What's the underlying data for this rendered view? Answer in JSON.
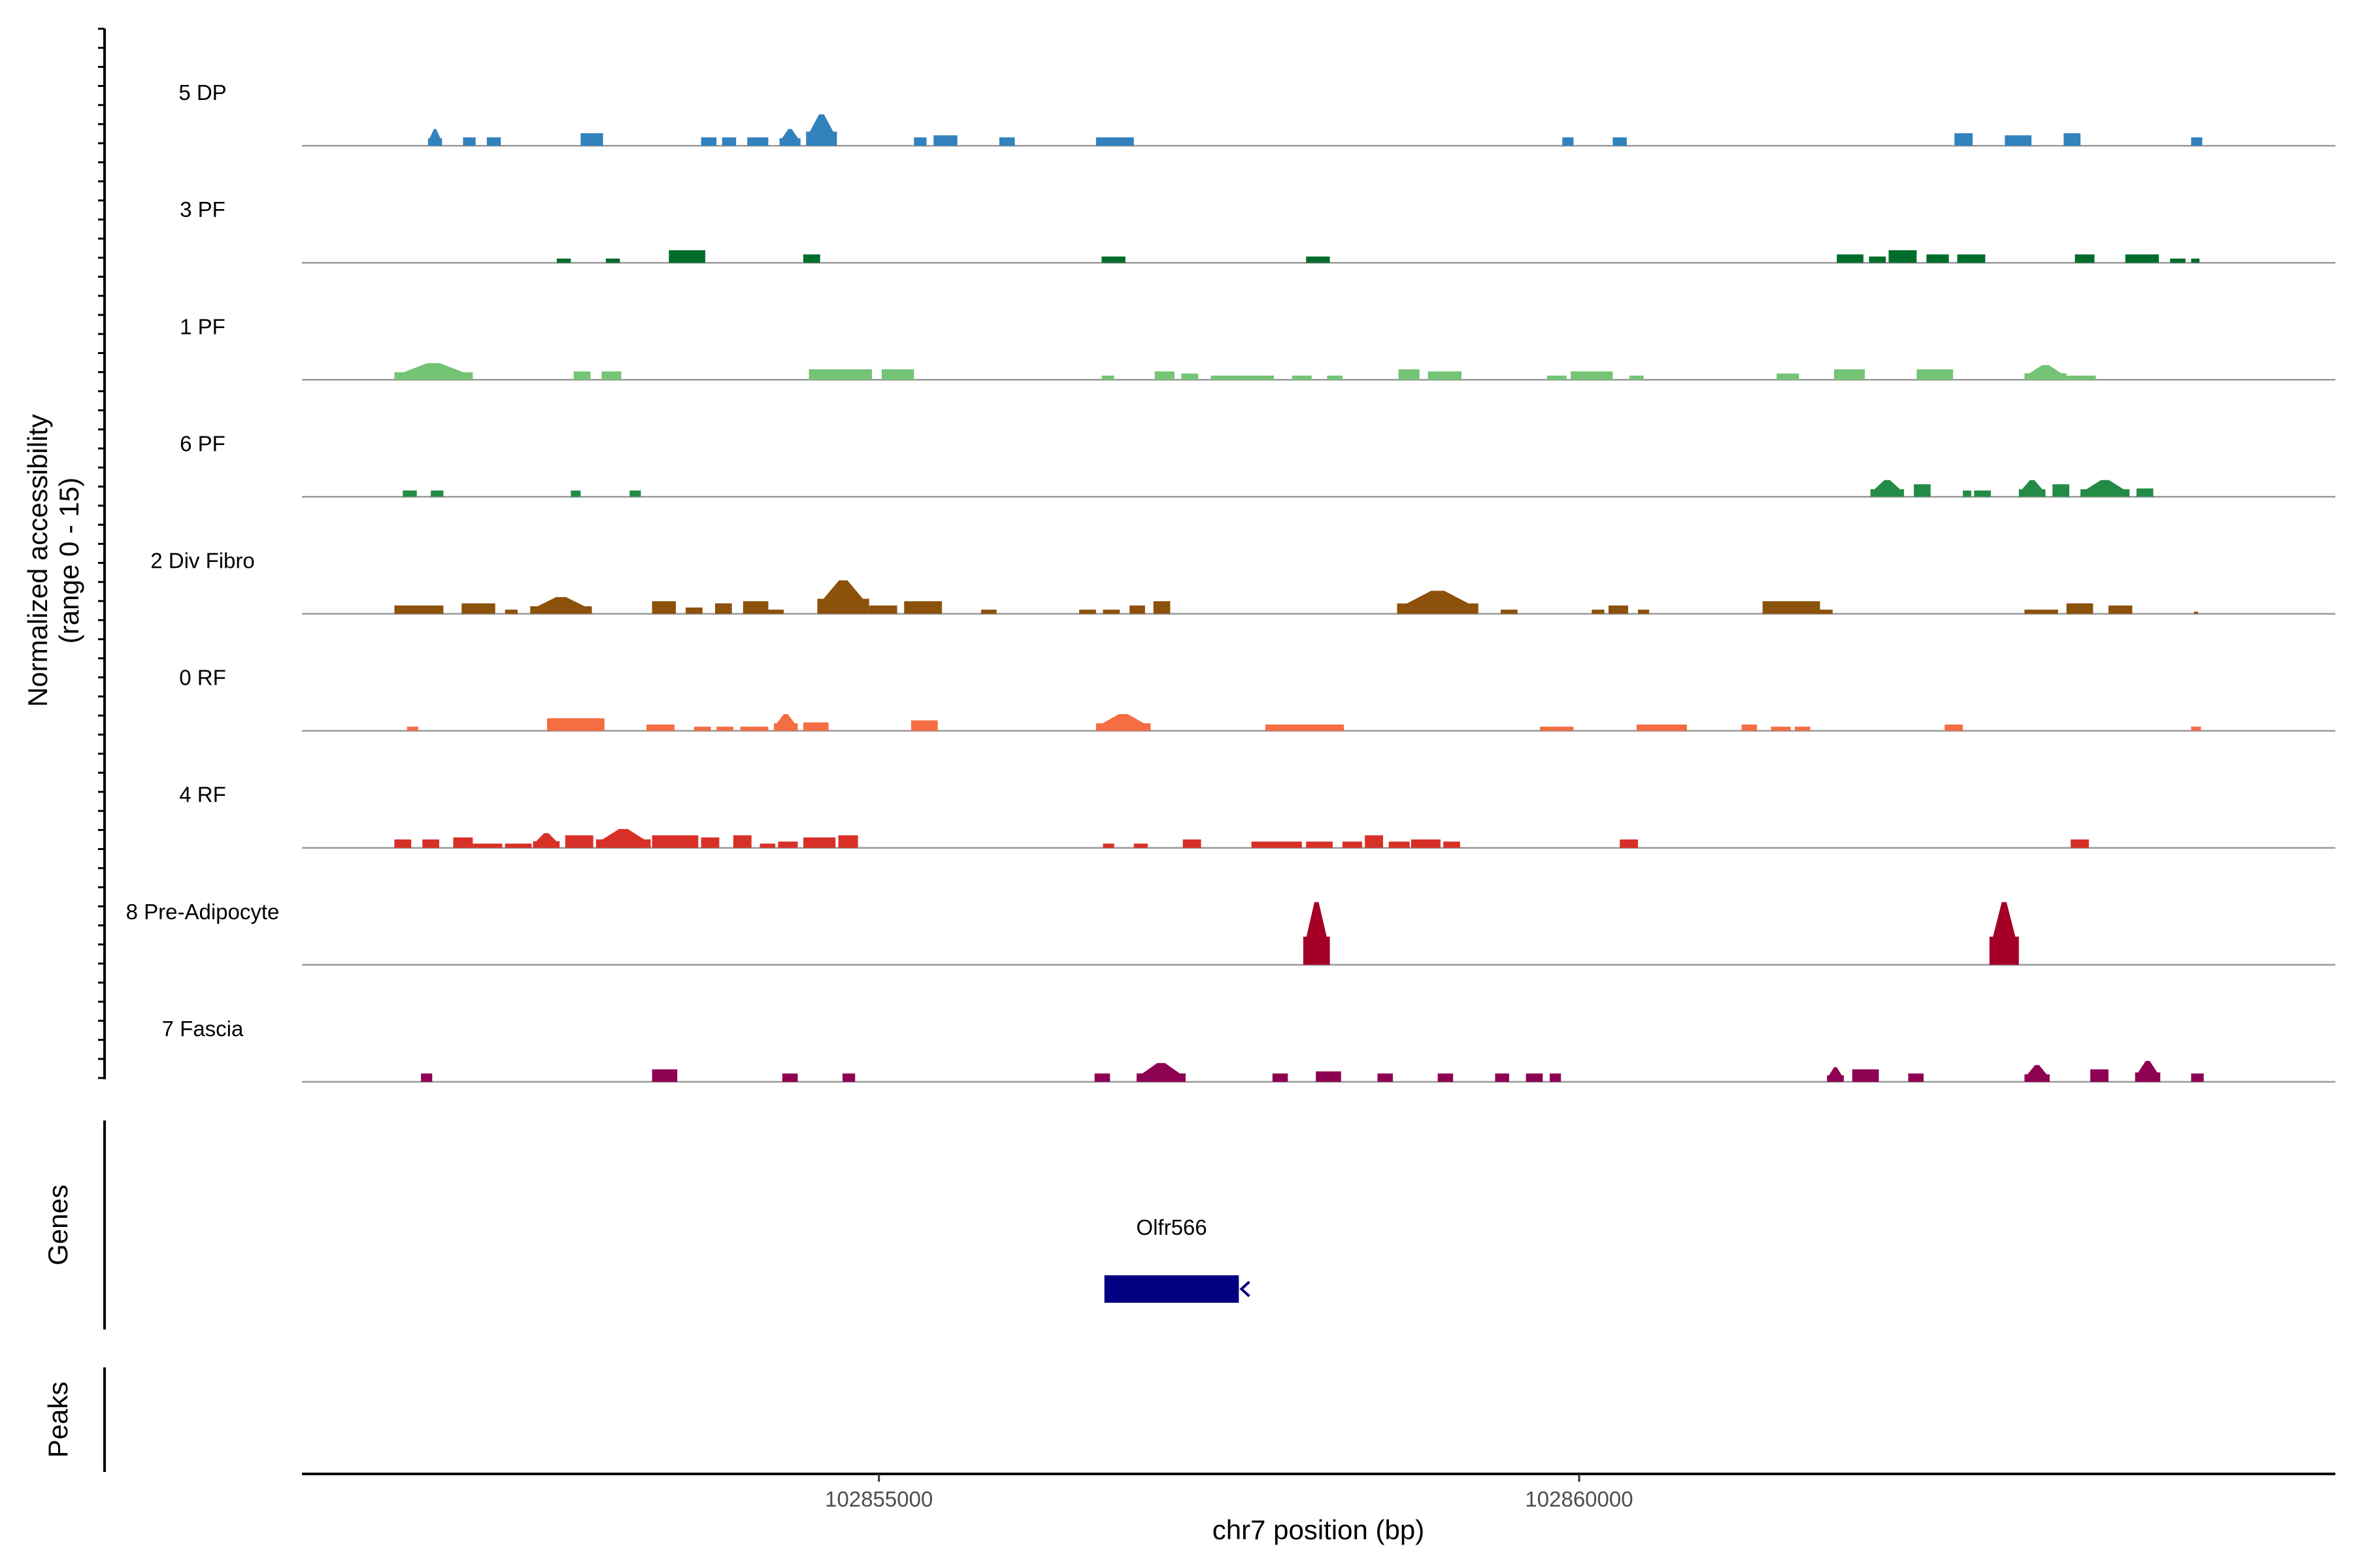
{
  "chart_data": {
    "type": "area",
    "title": "",
    "ylabel": "Normalized accessibility",
    "ylabel_range": "(range 0 - 15)",
    "xlabel": "chr7 position (bp)",
    "xlim": [
      102850880,
      102865400
    ],
    "ylim": [
      0,
      15
    ],
    "x_ticks": [
      102855000,
      102860000
    ],
    "x_tick_labels": [
      "102855000",
      "102860000"
    ],
    "tracks": [
      {
        "name": "5 DP",
        "color": "#3182BD",
        "peaks": [
          [
            102851780,
            102851880,
            4
          ],
          [
            102852030,
            102852120,
            2
          ],
          [
            102852200,
            102852300,
            2
          ],
          [
            102852870,
            102853030,
            3
          ],
          [
            102853730,
            102853840,
            2
          ],
          [
            102853880,
            102853980,
            2
          ],
          [
            102854060,
            102854210,
            2
          ],
          [
            102854290,
            102854440,
            4
          ],
          [
            102854480,
            102854700,
            7.5
          ],
          [
            102855250,
            102855340,
            2
          ],
          [
            102855390,
            102855560,
            2.5
          ],
          [
            102855860,
            102855970,
            2
          ],
          [
            102856550,
            102856720,
            2
          ],
          [
            102856710,
            102856820,
            2
          ],
          [
            102859880,
            102859960,
            2
          ],
          [
            102860240,
            102860340,
            2
          ],
          [
            102862680,
            102862810,
            3
          ],
          [
            102863040,
            102863230,
            2.5
          ],
          [
            102863460,
            102863580,
            3
          ],
          [
            102864370,
            102864450,
            2
          ]
        ]
      },
      {
        "name": "3 PF",
        "color": "#006D2C",
        "peaks": [
          [
            102852700,
            102852800,
            1
          ],
          [
            102853050,
            102853150,
            1
          ],
          [
            102853500,
            102853760,
            3
          ],
          [
            102854460,
            102854580,
            2
          ],
          [
            102856590,
            102856760,
            1.5
          ],
          [
            102858050,
            102858220,
            1.5
          ],
          [
            102861840,
            102862030,
            2
          ],
          [
            102862070,
            102862190,
            1.5
          ],
          [
            102862210,
            102862410,
            3
          ],
          [
            102862480,
            102862640,
            2
          ],
          [
            102862700,
            102862900,
            2
          ],
          [
            102863540,
            102863680,
            2
          ],
          [
            102863900,
            102864140,
            2
          ],
          [
            102864220,
            102864330,
            1
          ],
          [
            102864370,
            102864430,
            1
          ]
        ]
      },
      {
        "name": "1 PF",
        "color": "#74C476",
        "peaks": [
          [
            102851540,
            102852100,
            4
          ],
          [
            102852820,
            102852940,
            2
          ],
          [
            102853020,
            102853160,
            2
          ],
          [
            102854500,
            102854950,
            2.5
          ],
          [
            102855020,
            102855250,
            2.5
          ],
          [
            102856590,
            102856680,
            1
          ],
          [
            102856970,
            102857110,
            2
          ],
          [
            102857160,
            102857280,
            1.5
          ],
          [
            102857370,
            102857820,
            1
          ],
          [
            102857950,
            102858090,
            1
          ],
          [
            102858200,
            102858310,
            1
          ],
          [
            102858710,
            102858860,
            2.5
          ],
          [
            102858920,
            102859160,
            2
          ],
          [
            102859770,
            102859910,
            1
          ],
          [
            102859940,
            102860240,
            2
          ],
          [
            102860360,
            102860460,
            1
          ],
          [
            102861410,
            102861570,
            1.5
          ],
          [
            102861820,
            102862040,
            2.5
          ],
          [
            102862410,
            102862670,
            2.5
          ],
          [
            102863180,
            102863480,
            3.5
          ],
          [
            102863480,
            102863690,
            1
          ]
        ]
      },
      {
        "name": "6 PF",
        "color": "#238B45",
        "peaks": [
          [
            102851600,
            102851700,
            1.5
          ],
          [
            102851800,
            102851890,
            1.5
          ],
          [
            102852800,
            102852870,
            1.5
          ],
          [
            102853220,
            102853300,
            1.5
          ],
          [
            102862080,
            102862320,
            4
          ],
          [
            102862390,
            102862510,
            3
          ],
          [
            102862740,
            102862800,
            1.5
          ],
          [
            102862820,
            102862940,
            1.5
          ],
          [
            102863140,
            102863330,
            4
          ],
          [
            102863380,
            102863500,
            3
          ],
          [
            102863580,
            102863930,
            4
          ],
          [
            102863980,
            102864100,
            2
          ]
        ]
      },
      {
        "name": "2 Div Fibro",
        "color": "#8C510A",
        "peaks": [
          [
            102851540,
            102851890,
            2
          ],
          [
            102852020,
            102852260,
            2.5
          ],
          [
            102852330,
            102852420,
            1
          ],
          [
            102852510,
            102852950,
            4
          ],
          [
            102853380,
            102853550,
            3
          ],
          [
            102853620,
            102853740,
            1.5
          ],
          [
            102853830,
            102853950,
            2.5
          ],
          [
            102854030,
            102854210,
            3
          ],
          [
            102854210,
            102854320,
            1
          ],
          [
            102854560,
            102854930,
            8
          ],
          [
            102854930,
            102855130,
            2
          ],
          [
            102855180,
            102855450,
            3
          ],
          [
            102855730,
            102855840,
            1
          ],
          [
            102856430,
            102856550,
            1
          ],
          [
            102856600,
            102856720,
            1
          ],
          [
            102856790,
            102856900,
            2
          ],
          [
            102856960,
            102857080,
            3
          ],
          [
            102858700,
            102859280,
            5.5
          ],
          [
            102859440,
            102859560,
            1
          ],
          [
            102860090,
            102860180,
            1
          ],
          [
            102860210,
            102860350,
            2
          ],
          [
            102860420,
            102860500,
            1
          ],
          [
            102861310,
            102861720,
            3
          ],
          [
            102861720,
            102861810,
            1
          ],
          [
            102863180,
            102863420,
            1
          ],
          [
            102863480,
            102863670,
            2.5
          ],
          [
            102863780,
            102863950,
            2
          ],
          [
            102864390,
            102864420,
            0.5
          ]
        ]
      },
      {
        "name": "0 RF",
        "color": "#F46D43",
        "peaks": [
          [
            102851630,
            102851710,
            1
          ],
          [
            102852630,
            102853040,
            3
          ],
          [
            102853340,
            102853540,
            1.5
          ],
          [
            102853680,
            102853800,
            1
          ],
          [
            102853840,
            102853960,
            1
          ],
          [
            102854010,
            102854210,
            1
          ],
          [
            102854250,
            102854420,
            4
          ],
          [
            102854460,
            102854640,
            2
          ],
          [
            102855230,
            102855420,
            2.5
          ],
          [
            102856550,
            102856940,
            4
          ],
          [
            102857760,
            102858320,
            1.5
          ],
          [
            102859720,
            102859960,
            1
          ],
          [
            102860410,
            102860770,
            1.5
          ],
          [
            102861160,
            102861270,
            1.5
          ],
          [
            102861370,
            102861510,
            1
          ],
          [
            102861540,
            102861650,
            1
          ],
          [
            102862610,
            102862740,
            1.5
          ],
          [
            102864370,
            102864440,
            1
          ]
        ]
      },
      {
        "name": "4 RF",
        "color": "#D73027",
        "peaks": [
          [
            102851540,
            102851660,
            2
          ],
          [
            102851740,
            102851860,
            2
          ],
          [
            102851960,
            102852100,
            2.5
          ],
          [
            102852100,
            102852310,
            1
          ],
          [
            102852330,
            102852520,
            1
          ],
          [
            102852530,
            102852720,
            3.5
          ],
          [
            102852760,
            102852960,
            3
          ],
          [
            102852980,
            102853370,
            4.5
          ],
          [
            102853380,
            102853710,
            3
          ],
          [
            102853730,
            102853860,
            2.5
          ],
          [
            102853960,
            102854090,
            3
          ],
          [
            102854150,
            102854260,
            1
          ],
          [
            102854280,
            102854420,
            1.5
          ],
          [
            102854460,
            102854690,
            2.5
          ],
          [
            102854710,
            102854850,
            3
          ],
          [
            102856600,
            102856680,
            1
          ],
          [
            102856820,
            102856920,
            1
          ],
          [
            102857170,
            102857300,
            2
          ],
          [
            102857660,
            102858020,
            1.5
          ],
          [
            102858050,
            102858240,
            1.5
          ],
          [
            102858310,
            102858450,
            1.5
          ],
          [
            102858470,
            102858600,
            3
          ],
          [
            102858640,
            102858790,
            1.5
          ],
          [
            102858800,
            102859010,
            2
          ],
          [
            102859030,
            102859150,
            1.5
          ],
          [
            102860290,
            102860420,
            2
          ],
          [
            102863510,
            102863640,
            2
          ]
        ]
      },
      {
        "name": "8 Pre-Adipocyte",
        "color": "#A50026",
        "peaks": [
          [
            102858030,
            102858220,
            15
          ],
          [
            102862930,
            102863140,
            15
          ]
        ]
      },
      {
        "name": "7 Fascia",
        "color": "#8E0152",
        "peaks": [
          [
            102851730,
            102851810,
            2
          ],
          [
            102853380,
            102853560,
            3
          ],
          [
            102854310,
            102854420,
            2
          ],
          [
            102854740,
            102854830,
            2
          ],
          [
            102856540,
            102856650,
            2
          ],
          [
            102856840,
            102857190,
            4.5
          ],
          [
            102857810,
            102857920,
            2
          ],
          [
            102858120,
            102858300,
            2.5
          ],
          [
            102858560,
            102858670,
            2
          ],
          [
            102858990,
            102859100,
            2
          ],
          [
            102859400,
            102859500,
            2
          ],
          [
            102859620,
            102859740,
            2
          ],
          [
            102859790,
            102859870,
            2
          ],
          [
            102861770,
            102861890,
            3.5
          ],
          [
            102861950,
            102862140,
            3
          ],
          [
            102862350,
            102862460,
            2
          ],
          [
            102863180,
            102863360,
            4
          ],
          [
            102863650,
            102863780,
            3
          ],
          [
            102863970,
            102864150,
            5
          ],
          [
            102864370,
            102864460,
            2
          ]
        ]
      }
    ],
    "genes_label": "Genes",
    "genes": [
      {
        "name": "Olfr566",
        "start": 102856610,
        "end": 102857570,
        "strand": "-",
        "color": "#000080"
      }
    ],
    "peaks_label": "Peaks"
  }
}
